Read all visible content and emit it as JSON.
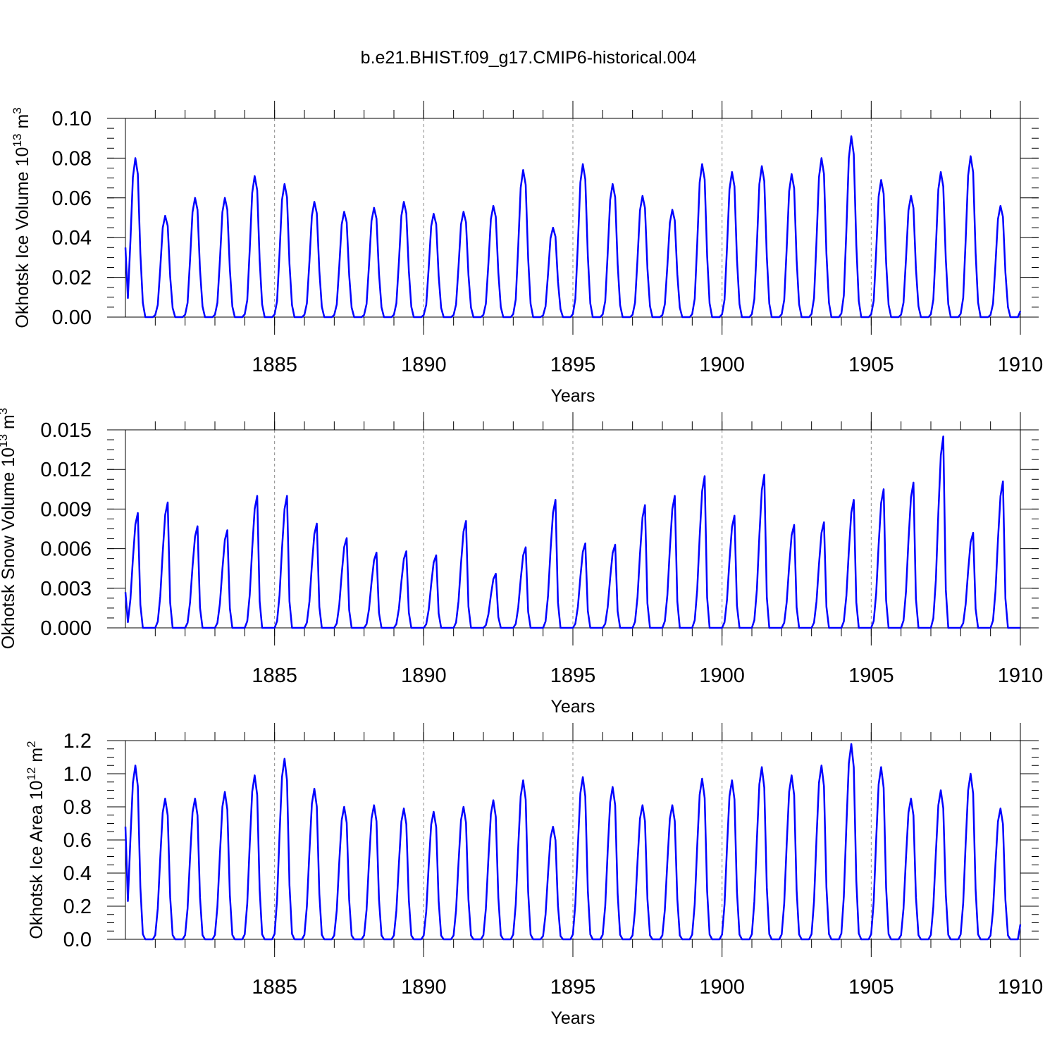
{
  "title": "b.e21.BHIST.f09_g17.CMIP6-historical.004",
  "colors": {
    "line": "#0000ff",
    "axis": "#000000",
    "grid": "#888888"
  },
  "chart_data": [
    {
      "type": "line",
      "ylabel": "Okhotsk Ice Volume",
      "yunit_prefix": "10",
      "yunit_exp": "13",
      "yunit_base": " m",
      "yunit_pow": "3",
      "xlabel": "Years",
      "xlim": [
        1880,
        1910
      ],
      "ylim": [
        0,
        0.1
      ],
      "yticks": [
        0,
        0.02,
        0.04,
        0.06,
        0.08,
        0.1
      ],
      "ytick_labels": [
        "0.00",
        "0.02",
        "0.04",
        "0.06",
        "0.08",
        "0.10"
      ],
      "ytick_minor": 0.005,
      "xticks": [
        1885,
        1890,
        1895,
        1900,
        1905,
        1910
      ],
      "xtick_labels": [
        "1885",
        "1890",
        "1895",
        "1900",
        "1905",
        "1910"
      ],
      "grid_x": [
        1885,
        1890,
        1895,
        1900,
        1905
      ],
      "series": [
        {
          "name": "ice_volume",
          "start_year": 1880.0,
          "step": 0.08333,
          "peaks": [
            0.08,
            0.051,
            0.06,
            0.06,
            0.071,
            0.067,
            0.058,
            0.053,
            0.055,
            0.058,
            0.052,
            0.053,
            0.056,
            0.074,
            0.045,
            0.077,
            0.067,
            0.061,
            0.054,
            0.077,
            0.073,
            0.076,
            0.072,
            0.08,
            0.091,
            0.069,
            0.061,
            0.073,
            0.081,
            0.056
          ],
          "start_value": 0.035,
          "end_value": 0.003,
          "shape": [
            0.02,
            0.12,
            0.48,
            0.88,
            1.0,
            0.9,
            0.4,
            0.09,
            0.0,
            0.0,
            0.0,
            0.0
          ]
        }
      ]
    },
    {
      "type": "line",
      "ylabel": "Okhotsk Snow Volume",
      "yunit_prefix": "10",
      "yunit_exp": "13",
      "yunit_base": " m",
      "yunit_pow": "3",
      "xlabel": "Years",
      "xlim": [
        1880,
        1910
      ],
      "ylim": [
        0,
        0.015
      ],
      "yticks": [
        0,
        0.003,
        0.006,
        0.009,
        0.012,
        0.015
      ],
      "ytick_labels": [
        "0.000",
        "0.003",
        "0.006",
        "0.009",
        "0.012",
        "0.015"
      ],
      "ytick_minor": 0.00075,
      "xticks": [
        1885,
        1890,
        1895,
        1900,
        1905,
        1910
      ],
      "xtick_labels": [
        "1885",
        "1890",
        "1895",
        "1900",
        "1905",
        "1910"
      ],
      "grid_x": [
        1885,
        1890,
        1895,
        1900,
        1905
      ],
      "series": [
        {
          "name": "snow_volume",
          "start_year": 1880.0,
          "step": 0.08333,
          "peaks": [
            0.0087,
            0.0095,
            0.0077,
            0.0074,
            0.01,
            0.01,
            0.0079,
            0.0068,
            0.0057,
            0.0058,
            0.0055,
            0.0081,
            0.0041,
            0.0061,
            0.0097,
            0.0064,
            0.0063,
            0.0093,
            0.01,
            0.0115,
            0.0085,
            0.0116,
            0.0078,
            0.008,
            0.0097,
            0.0105,
            0.011,
            0.0145,
            0.0072,
            0.0111
          ],
          "start_value": 0.0027,
          "end_value": 0.0,
          "shape": [
            0.0,
            0.05,
            0.25,
            0.6,
            0.9,
            1.0,
            0.2,
            0.0,
            0.0,
            0.0,
            0.0,
            0.0
          ]
        }
      ]
    },
    {
      "type": "line",
      "ylabel": "Okhotsk Ice Area",
      "yunit_prefix": "10",
      "yunit_exp": "12",
      "yunit_base": " m",
      "yunit_pow": "2",
      "xlabel": "Years",
      "xlim": [
        1880,
        1910
      ],
      "ylim": [
        0,
        1.2
      ],
      "yticks": [
        0,
        0.2,
        0.4,
        0.6,
        0.8,
        1.0,
        1.2
      ],
      "ytick_labels": [
        "0.0",
        "0.2",
        "0.4",
        "0.6",
        "0.8",
        "1.0",
        "1.2"
      ],
      "ytick_minor": 0.05,
      "xticks": [
        1885,
        1890,
        1895,
        1900,
        1905,
        1910
      ],
      "xtick_labels": [
        "1885",
        "1890",
        "1895",
        "1900",
        "1905",
        "1910"
      ],
      "grid_x": [
        1885,
        1890,
        1895,
        1900,
        1905
      ],
      "series": [
        {
          "name": "ice_area",
          "start_year": 1880.0,
          "step": 0.08333,
          "peaks": [
            1.05,
            0.85,
            0.85,
            0.89,
            0.99,
            1.09,
            0.91,
            0.8,
            0.81,
            0.79,
            0.77,
            0.8,
            0.84,
            0.96,
            0.68,
            0.98,
            0.92,
            0.81,
            0.81,
            0.97,
            0.96,
            1.04,
            0.99,
            1.05,
            1.18,
            1.04,
            0.85,
            0.9,
            1.0,
            0.79
          ],
          "start_value": 0.68,
          "end_value": 0.09,
          "shape": [
            0.03,
            0.22,
            0.58,
            0.9,
            1.0,
            0.88,
            0.3,
            0.03,
            0.0,
            0.0,
            0.0,
            0.0
          ]
        }
      ]
    }
  ]
}
